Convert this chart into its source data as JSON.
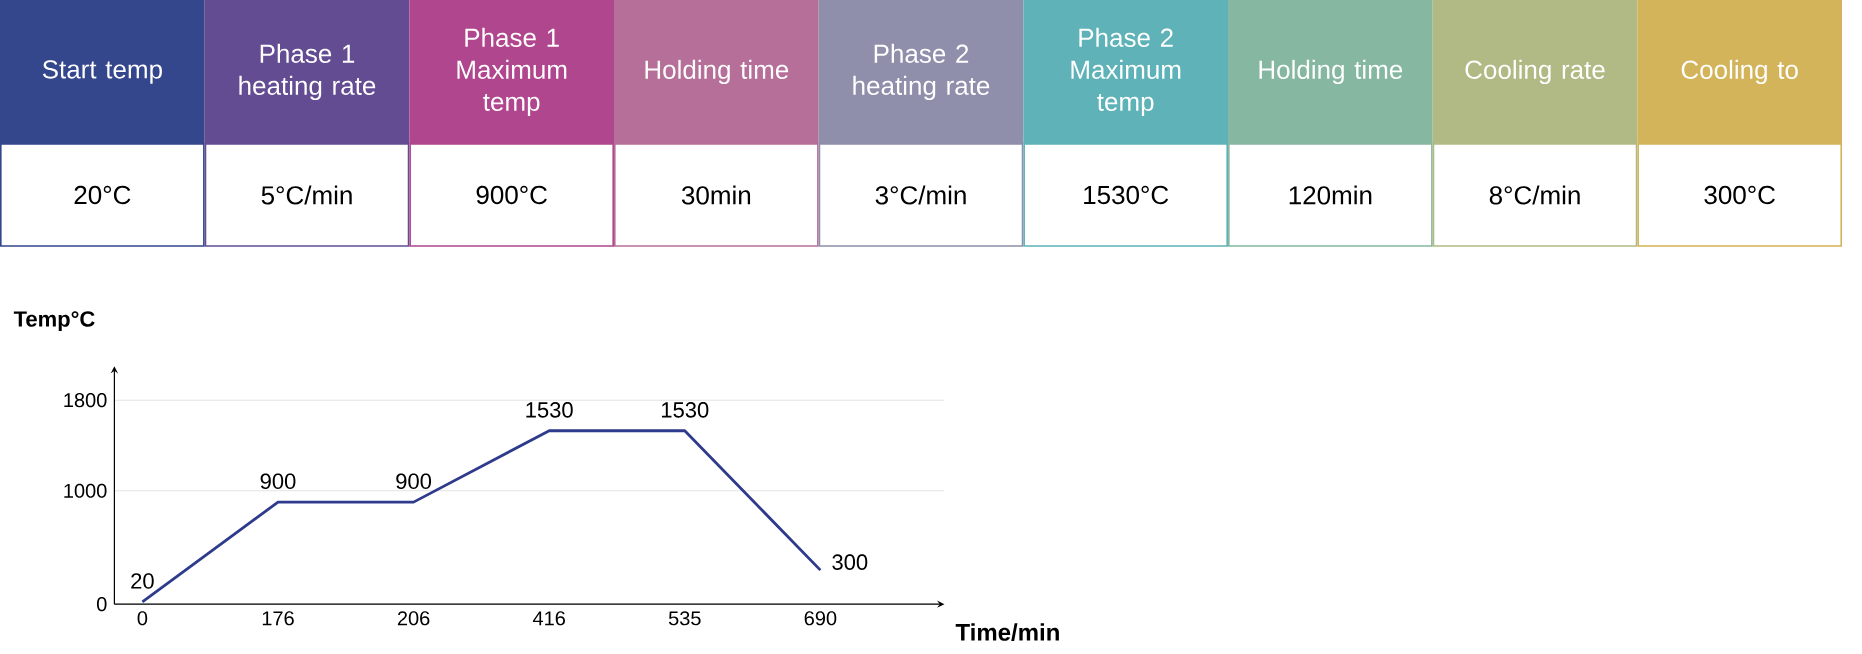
{
  "chart_data": [
    {
      "type": "other",
      "categories": [
        "Start temp",
        "Phase 1 heating rate",
        "Phase 1 Maximum temp",
        "Holding time",
        "Phase 2 heating rate",
        "Phase 2 Maximum temp",
        "Holding time",
        "Cooling rate",
        "Cooling to"
      ],
      "colors": [
        "#34468c",
        "#634c92",
        "#b0468e",
        "#b66f98",
        "#8f8fab",
        "#5eb2b8",
        "#86b7a0",
        "#b1b984",
        "#d4b45a"
      ],
      "annotations": [
        "20°C",
        "5°C/min",
        "900°C",
        "30min",
        "3°C/min",
        "1530°C",
        "120min",
        "8°C/min",
        "300°C"
      ]
    },
    {
      "type": "line",
      "categories": [
        "0",
        "176",
        "206",
        "416",
        "535",
        "690"
      ],
      "values": [
        20,
        900,
        900,
        1530,
        1530,
        300
      ],
      "color": "#2e3a8c",
      "ylim": [
        0,
        2100
      ],
      "yticks": [
        0,
        1000,
        1800
      ],
      "grid": "y",
      "data_labels": true,
      "xlabel": "Time/min",
      "ylabel": "Temp°C"
    }
  ]
}
